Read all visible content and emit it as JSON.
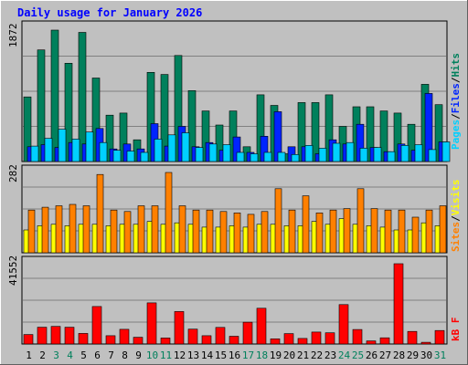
{
  "chart_data": [
    {
      "type": "bar",
      "title": "Daily usage for January 2026",
      "categories": [
        "1",
        "2",
        "3",
        "4",
        "5",
        "6",
        "7",
        "8",
        "9",
        "10",
        "11",
        "12",
        "13",
        "14",
        "15",
        "16",
        "17",
        "18",
        "19",
        "20",
        "21",
        "22",
        "23",
        "24",
        "25",
        "26",
        "27",
        "28",
        "29",
        "30",
        "31"
      ],
      "weekend_days": [
        "3",
        "4",
        "10",
        "11",
        "17",
        "18",
        "24",
        "25",
        "31"
      ],
      "ylabel_max": "1872",
      "ymax": 1872,
      "series": [
        {
          "name": "Hits",
          "color": "#00805c",
          "values": [
            920,
            1590,
            1872,
            1400,
            1840,
            1190,
            660,
            690,
            310,
            1270,
            1240,
            1510,
            1010,
            720,
            520,
            720,
            210,
            950,
            800,
            110,
            840,
            840,
            950,
            500,
            780,
            780,
            720,
            690,
            530,
            1100,
            810
          ]
        },
        {
          "name": "Files",
          "color": "#0024ff",
          "values": [
            210,
            240,
            200,
            270,
            250,
            470,
            180,
            250,
            180,
            540,
            220,
            500,
            210,
            270,
            160,
            350,
            130,
            360,
            710,
            210,
            210,
            110,
            310,
            250,
            530,
            200,
            140,
            250,
            160,
            970,
            280
          ]
        },
        {
          "name": "Pages",
          "color": "#00d0ff",
          "values": [
            220,
            330,
            460,
            320,
            420,
            270,
            160,
            150,
            130,
            320,
            380,
            410,
            200,
            250,
            240,
            130,
            110,
            130,
            130,
            100,
            230,
            190,
            260,
            270,
            190,
            200,
            140,
            230,
            240,
            170,
            280
          ]
        }
      ]
    },
    {
      "type": "bar",
      "ylabel_max": "282",
      "ymax": 282,
      "series": [
        {
          "name": "Visits",
          "color": "#ffff00",
          "values": [
            80,
            95,
            100,
            95,
            100,
            100,
            95,
            100,
            100,
            110,
            100,
            105,
            100,
            90,
            90,
            95,
            90,
            100,
            100,
            95,
            95,
            110,
            100,
            120,
            100,
            95,
            90,
            80,
            80,
            105,
            95
          ]
        },
        {
          "name": "Sites",
          "color": "#ff8000",
          "values": [
            150,
            160,
            165,
            170,
            165,
            275,
            150,
            145,
            165,
            165,
            282,
            165,
            150,
            150,
            145,
            140,
            135,
            145,
            225,
            150,
            200,
            140,
            150,
            155,
            225,
            155,
            150,
            150,
            125,
            150,
            165
          ]
        }
      ]
    },
    {
      "type": "bar",
      "ylabel_max": "41552",
      "ymax": 41552,
      "series": [
        {
          "name": "kB F",
          "color": "#ff0000",
          "values": [
            4900,
            8700,
            9100,
            8700,
            5500,
            19400,
            4300,
            7600,
            3500,
            21300,
            3100,
            16800,
            7700,
            4300,
            8600,
            4000,
            11300,
            18500,
            2700,
            5400,
            2900,
            6200,
            5800,
            20400,
            7500,
            1600,
            3200,
            41552,
            6500,
            900,
            7000
          ]
        }
      ]
    }
  ]
}
